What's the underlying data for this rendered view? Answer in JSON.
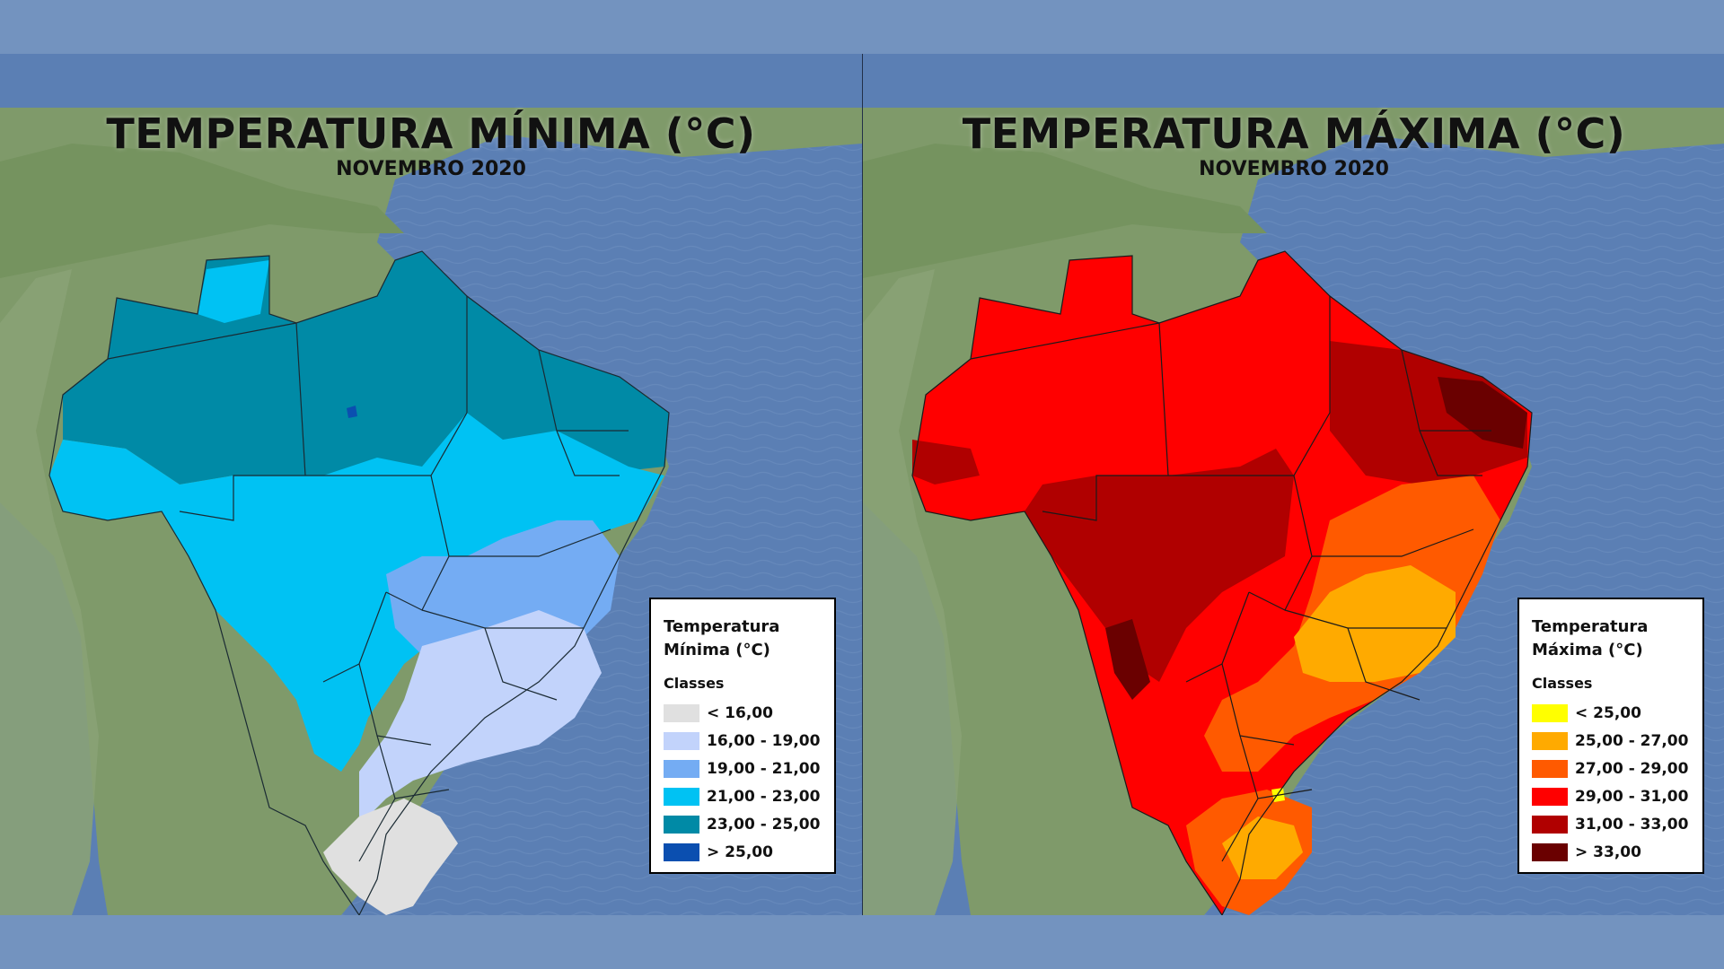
{
  "panels": [
    {
      "title": "TEMPERATURA MÍNIMA (°C)",
      "subtitle": "NOVEMBRO 2020",
      "legend": {
        "title_line1": "Temperatura",
        "title_line2": "Mínima (°C)",
        "classes_label": "Classes",
        "items": [
          {
            "label": "< 16,00",
            "color": "#e0e0e0"
          },
          {
            "label": "16,00 - 19,00",
            "color": "#c2d3fb"
          },
          {
            "label": "19,00 - 21,00",
            "color": "#74acf3"
          },
          {
            "label": "21,00 - 23,00",
            "color": "#00c2f3"
          },
          {
            "label": "23,00 - 25,00",
            "color": "#008aa6"
          },
          {
            "label": "> 25,00",
            "color": "#0b4fb0"
          }
        ]
      }
    },
    {
      "title": "TEMPERATURA MÁXIMA (°C)",
      "subtitle": "NOVEMBRO 2020",
      "legend": {
        "title_line1": "Temperatura",
        "title_line2": "Máxima (°C)",
        "classes_label": "Classes",
        "items": [
          {
            "label": "< 25,00",
            "color": "#ffff00"
          },
          {
            "label": "25,00 - 27,00",
            "color": "#ffaa00"
          },
          {
            "label": "27,00 - 29,00",
            "color": "#ff5a00"
          },
          {
            "label": "29,00 - 31,00",
            "color": "#ff0000"
          },
          {
            "label": "31,00 - 33,00",
            "color": "#b00000"
          },
          {
            "label": "> 33,00",
            "color": "#6a0000"
          }
        ]
      }
    }
  ],
  "colors": {
    "background": "#7393bf",
    "ocean": "#5b7fb4",
    "land": "#7f9a6a"
  }
}
